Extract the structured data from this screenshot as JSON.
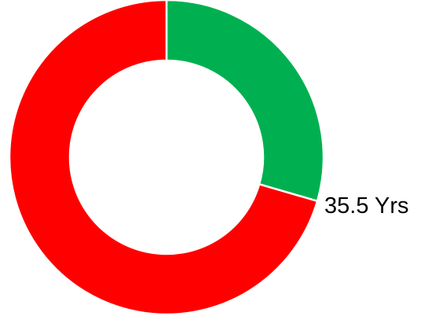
{
  "chart_data": {
    "type": "pie",
    "variant": "donut",
    "slices": [
      {
        "value": 29.5,
        "color": "#00b050"
      },
      {
        "value": 70.5,
        "color": "#ff0000"
      }
    ],
    "annotation": "35.5 Yrs",
    "legend": "none",
    "title": ""
  }
}
